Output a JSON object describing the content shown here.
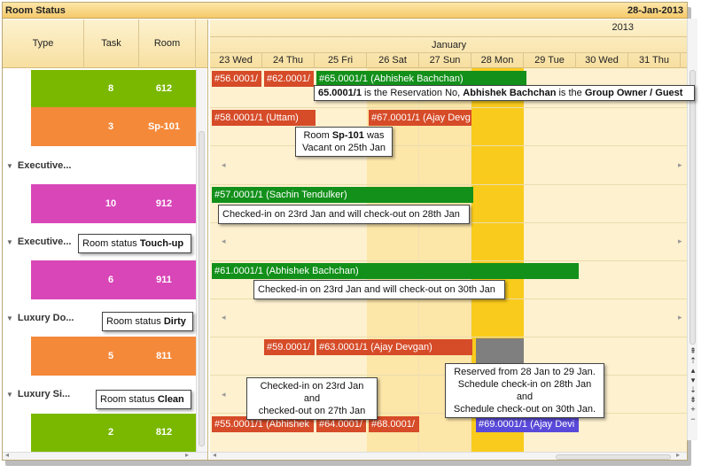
{
  "title": "Room Status",
  "date": "28-Jan-2013",
  "year": "2013",
  "month": "January",
  "left_header": {
    "type": "Type",
    "task": "Task",
    "room": "Room"
  },
  "days": [
    "23 Wed",
    "24 Thu",
    "25 Fri",
    "26 Sat",
    "27 Sun",
    "28 Mon",
    "29 Tue",
    "30 Wed",
    "31 Thu"
  ],
  "groups": [
    "Executive...",
    "Executive...",
    "Luxury Do...",
    "Luxury Si..."
  ],
  "rooms": [
    {
      "task": "8",
      "room": "612",
      "color": "#7ab800"
    },
    {
      "task": "3",
      "room": "Sp-101",
      "color": "#f5893a"
    },
    {
      "task": "10",
      "room": "912",
      "color": "#d946b8"
    },
    {
      "task": "6",
      "room": "911",
      "color": "#d946b8"
    },
    {
      "task": "5",
      "room": "811",
      "color": "#f5893a"
    },
    {
      "task": "2",
      "room": "812",
      "color": "#7ab800"
    }
  ],
  "reservations": {
    "r1a": "#56.0001/",
    "r1b": "#62.0001/",
    "r1c": "#65.0001/1 (Abhishek Bachchan)",
    "r2a": "#58.0001/1 (Uttam)",
    "r2b": "#67.0001/1 (Ajay Devg",
    "r3": "#57.0001/1 (Sachin Tendulker)",
    "r4": "#61.0001/1 (Abhishek Bachchan)",
    "r5a": "#59.0001/",
    "r5b": "#63.0001/1 (Ajay Devgan)",
    "r6a": "#55.0001/1 (Abhishek",
    "r6b": "#64.0001/",
    "r6c": "#68.0001/",
    "r6d": "#69.0001/1 (Ajay Devi"
  },
  "callouts": {
    "c1a": "65.0001/1",
    "c1b": " is the Reservation No, ",
    "c1c": "Abhishek Bachchan",
    "c1d": " is the ",
    "c1e": "Group Owner / Guest",
    "c2a": "Room ",
    "c2b": "Sp-101",
    "c2c": " was",
    "c2d": "Vacant on 25th Jan",
    "c3": "Checked-in on 23rd Jan and will check-out on 28th Jan",
    "c4": "Checked-in on 23rd Jan and will check-out on 30th Jan",
    "c5a": "Room status ",
    "c5b": "Touch-up",
    "c6a": "Room status ",
    "c6b": "Dirty",
    "c7a": "Room status ",
    "c7b": "Clean",
    "c8a": "Checked-in on 23rd Jan and",
    "c8b": "checked-out on 27th Jan",
    "c9a": "Reserved from 28 Jan to 29 Jan.",
    "c9b": "Schedule check-in on 28th Jan and",
    "c9c": "Schedule check-out on 30th Jan."
  }
}
